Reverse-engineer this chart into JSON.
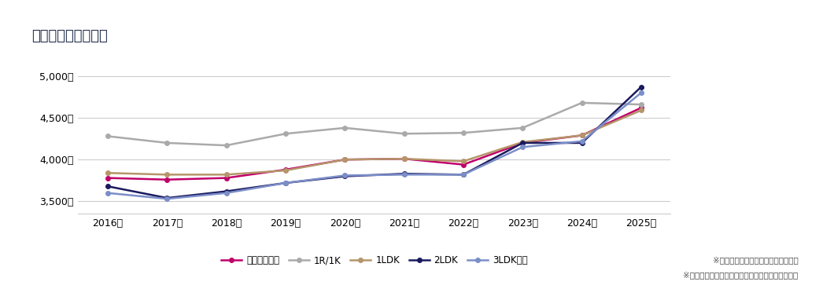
{
  "title": "最寄り駅別チャート",
  "years": [
    2016,
    2017,
    2018,
    2019,
    2020,
    2021,
    2022,
    2023,
    2024,
    2025
  ],
  "year_labels": [
    "2016年",
    "2017年",
    "2018年",
    "2019年",
    "2020年",
    "2021年",
    "2022年",
    "2023年",
    "2024年",
    "2025年"
  ],
  "series": [
    {
      "name": "勝どき駅平均",
      "values": [
        3780,
        3760,
        3780,
        3880,
        4000,
        4010,
        3940,
        4200,
        4290,
        4620
      ],
      "color": "#c0006a",
      "linewidth": 1.8,
      "markersize": 4
    },
    {
      "name": "1R/1K",
      "values": [
        4280,
        4200,
        4170,
        4310,
        4380,
        4310,
        4320,
        4380,
        4680,
        4660
      ],
      "color": "#aaaaaa",
      "linewidth": 1.8,
      "markersize": 4
    },
    {
      "name": "1LDK",
      "values": [
        3840,
        3820,
        3820,
        3870,
        4000,
        4010,
        3980,
        4210,
        4290,
        4590
      ],
      "color": "#b5956a",
      "linewidth": 1.8,
      "markersize": 4
    },
    {
      "name": "2LDK",
      "values": [
        3680,
        3540,
        3620,
        3720,
        3800,
        3830,
        3820,
        4200,
        4200,
        4870
      ],
      "color": "#1a1a5e",
      "linewidth": 1.8,
      "markersize": 4
    },
    {
      "name": "3LDK以上",
      "values": [
        3600,
        3530,
        3600,
        3720,
        3810,
        3820,
        3820,
        4150,
        4220,
        4800
      ],
      "color": "#7b8ec8",
      "linewidth": 1.8,
      "markersize": 4
    }
  ],
  "ylim": [
    3350,
    5150
  ],
  "yticks": [
    3500,
    4000,
    4500,
    5000
  ],
  "ytick_labels": [
    "3,500円",
    "4,000円",
    "4,500円",
    "5,000円"
  ],
  "background_color": "#ffffff",
  "grid_color": "#cccccc",
  "title_color": "#1a2744",
  "accent_color": "#1a3a5c",
  "note1": "※当社掲載物件の賃料相場になります",
  "note2": "※データがない場合は前後でデータを結んでいます",
  "title_fontsize": 13,
  "axis_fontsize": 9,
  "legend_fontsize": 8.5,
  "note_fontsize": 7.5
}
